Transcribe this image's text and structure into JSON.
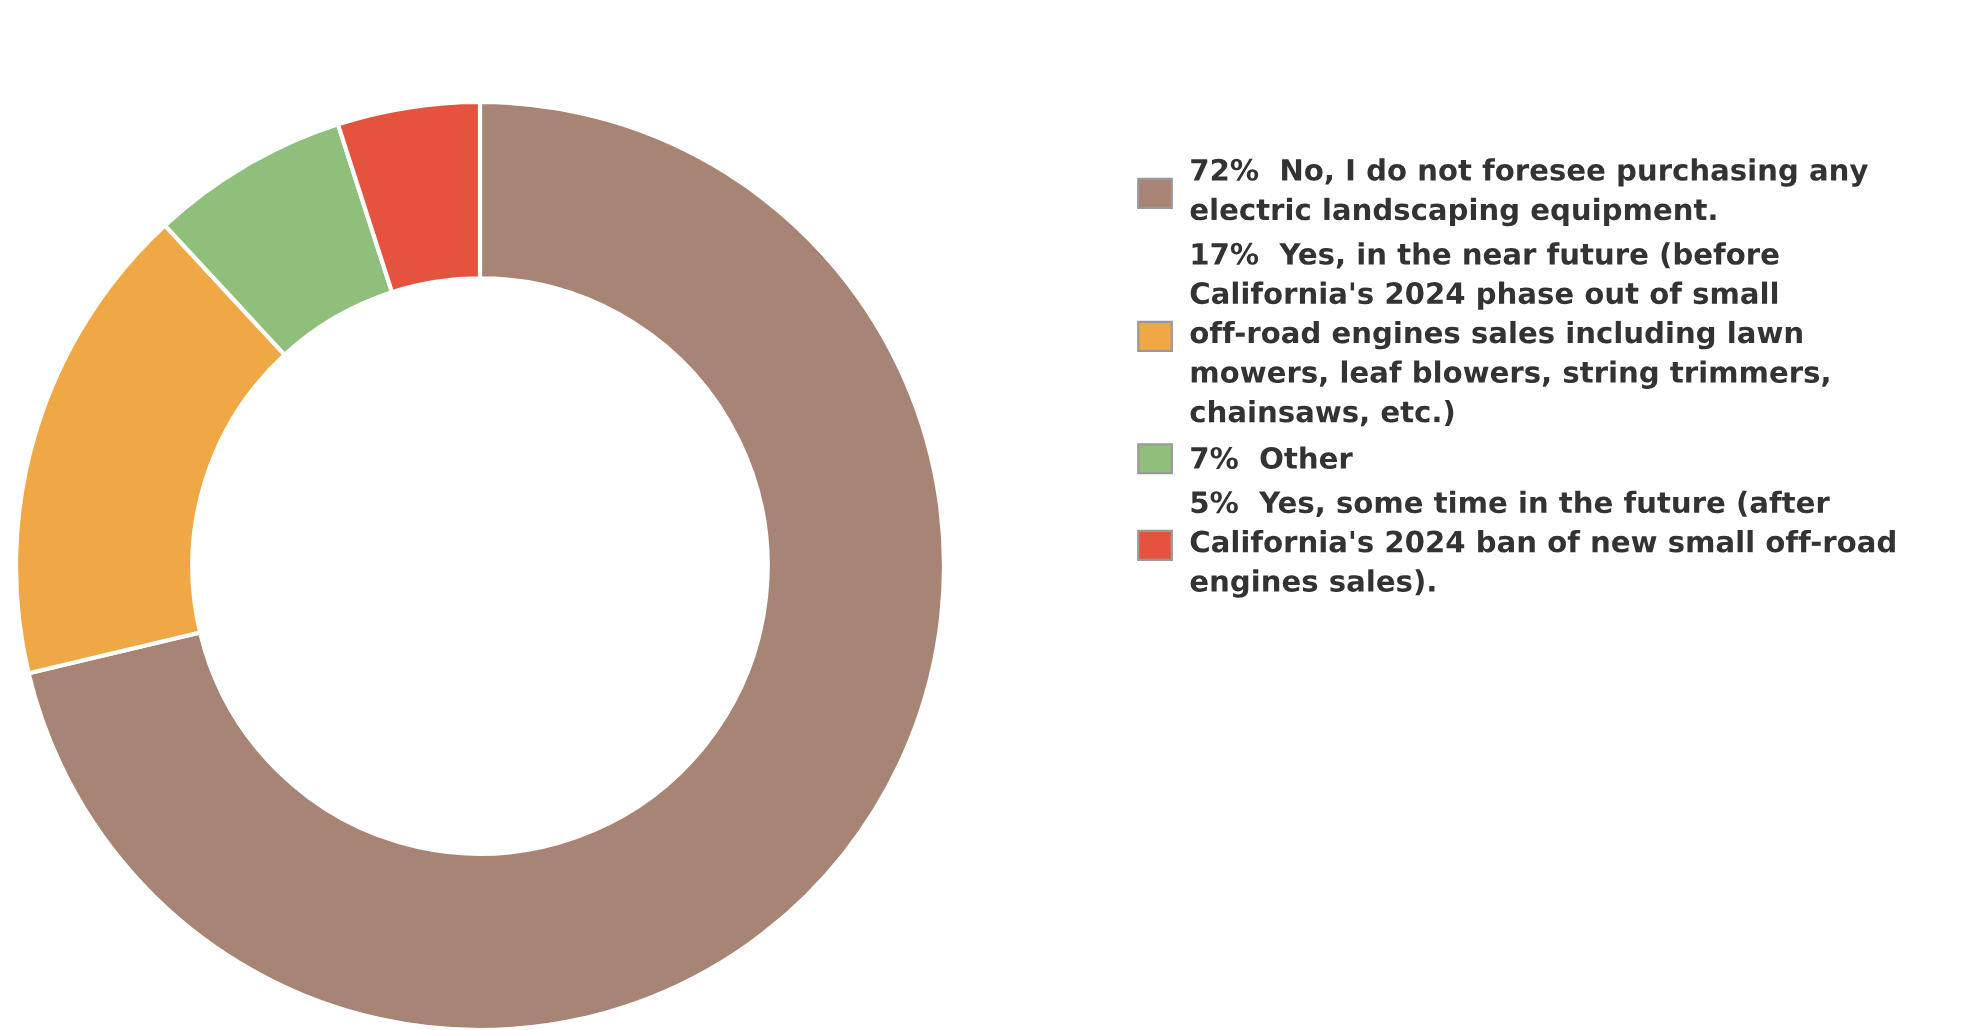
{
  "chart_data": {
    "type": "donut",
    "categories": [
      "No, I do not foresee purchasing any electric landscaping equipment.",
      "Yes, in the near future (before California's 2024 phase out of small off-road engines sales including lawn mowers, leaf blowers, string trimmers, chainsaws, etc.)",
      "Other",
      "Yes, some time in the future (after California's 2024 ban of new small off-road engines sales)."
    ],
    "values": [
      72,
      17,
      7,
      5
    ],
    "value_labels": [
      "72%",
      "17%",
      "7%",
      "5%"
    ],
    "colors": [
      "#a88474",
      "#f0a847",
      "#8fbf7a",
      "#e5533f"
    ],
    "legend": "right"
  }
}
